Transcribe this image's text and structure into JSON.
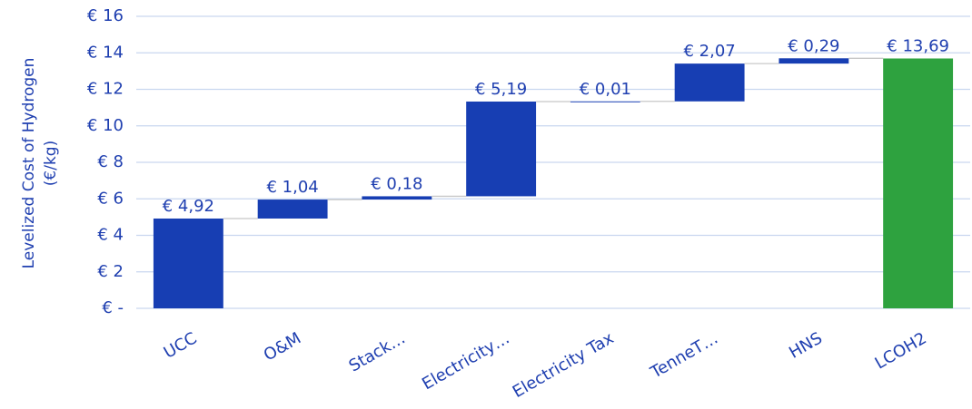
{
  "chart_data": {
    "type": "waterfall",
    "ylabel": [
      "Levelized Cost of Hydrogen",
      "(€/kg)"
    ],
    "categories": [
      "UCC",
      "O&M",
      "Stack…",
      "Electricity…",
      "Electricity Tax",
      "TenneT…",
      "HNS",
      "LCOH2"
    ],
    "values": [
      4.92,
      1.04,
      0.18,
      5.19,
      0.01,
      2.07,
      0.29,
      13.69
    ],
    "value_labels": [
      "€ 4,92",
      "€ 1,04",
      "€ 0,18",
      "€ 5,19",
      "€ 0,01",
      "€ 2,07",
      "€ 0,29",
      "€ 13,69"
    ],
    "is_total": [
      false,
      false,
      false,
      false,
      false,
      false,
      false,
      true
    ],
    "color": "#173eb3",
    "total_color": "#2ea23f",
    "ylim": [
      0,
      16
    ],
    "yticks": [
      {
        "value": 0,
        "label": "€ -"
      },
      {
        "value": 2,
        "label": "€ 2"
      },
      {
        "value": 4,
        "label": "€ 4"
      },
      {
        "value": 6,
        "label": "€ 6"
      },
      {
        "value": 8,
        "label": "€ 8"
      },
      {
        "value": 10,
        "label": "€ 10"
      },
      {
        "value": 12,
        "label": "€ 12"
      },
      {
        "value": 14,
        "label": "€ 14"
      },
      {
        "value": 16,
        "label": "€ 16"
      }
    ],
    "grid": true
  }
}
